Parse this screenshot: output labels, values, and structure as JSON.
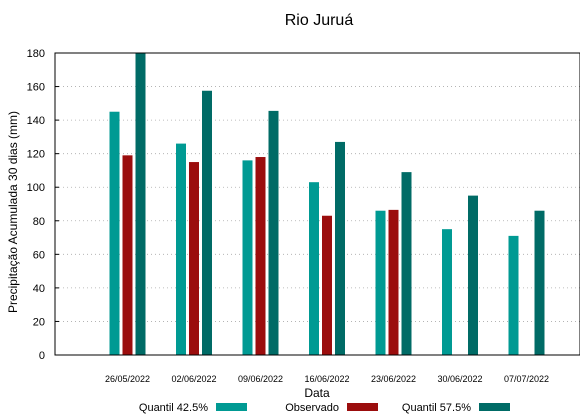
{
  "chart_data": {
    "type": "bar",
    "title": "Rio Juruá",
    "xlabel": "Data",
    "ylabel": "Precipitação Acumulada 30 dias (mm)",
    "ylim": [
      0,
      180
    ],
    "yticks": [
      0,
      20,
      40,
      60,
      80,
      100,
      120,
      140,
      160,
      180
    ],
    "grid": true,
    "legend_position": "bottom",
    "categories": [
      "26/05/2022",
      "02/06/2022",
      "09/06/2022",
      "16/06/2022",
      "23/06/2022",
      "30/06/2022",
      "07/07/2022"
    ],
    "series": [
      {
        "name": "Quantil 42.5%",
        "color": "#009a93",
        "values": [
          145,
          126,
          116,
          103,
          86,
          75,
          71
        ]
      },
      {
        "name": "Observado",
        "color": "#9b0d0d",
        "values": [
          119,
          115,
          118,
          83,
          86.5,
          null,
          null
        ]
      },
      {
        "name": "Quantil 57.5%",
        "color": "#006b66",
        "values": [
          180,
          157.5,
          145.5,
          127,
          109,
          95,
          86
        ]
      }
    ]
  }
}
